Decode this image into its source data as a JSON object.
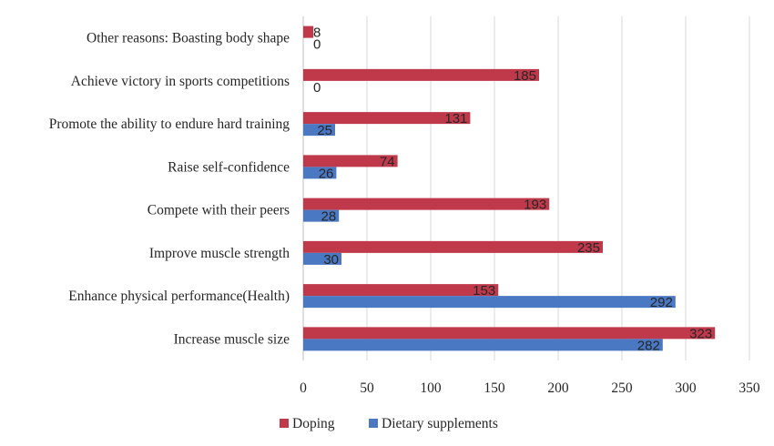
{
  "chart_data": {
    "type": "bar",
    "orientation": "horizontal",
    "categories": [
      "Other reasons: Boasting body shape",
      "Achieve victory in sports competitions",
      "Promote the ability to endure hard training",
      "Raise self-confidence",
      "Compete with their peers",
      "Improve muscle strength",
      "Enhance physical performance(Health)",
      "Increase muscle size"
    ],
    "series": [
      {
        "name": "Doping",
        "color": "#c0394b",
        "values": [
          8,
          185,
          131,
          74,
          193,
          235,
          153,
          323
        ]
      },
      {
        "name": "Dietary supplements",
        "color": "#4a78c2",
        "values": [
          0,
          0,
          25,
          26,
          28,
          30,
          292,
          282
        ]
      }
    ],
    "xlim": [
      0,
      350
    ],
    "xticks": [
      "0",
      "50",
      "100",
      "150",
      "200",
      "250",
      "300",
      "350"
    ],
    "grid": true,
    "legend_position": "bottom",
    "data_labels": true
  }
}
